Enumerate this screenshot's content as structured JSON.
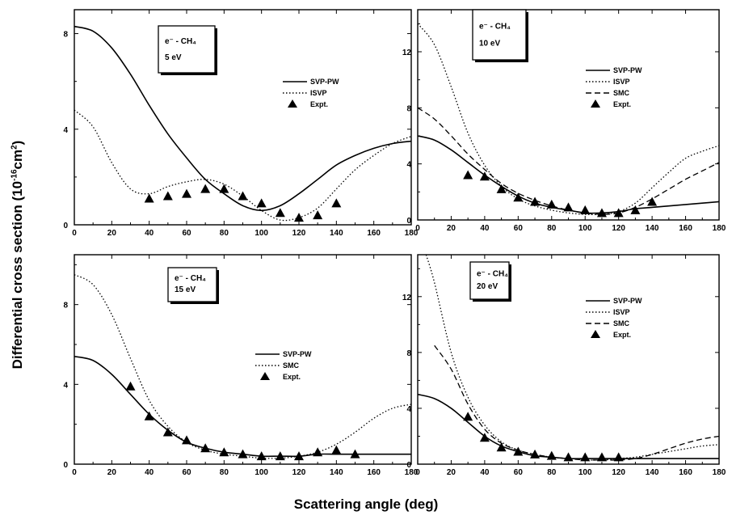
{
  "figure": {
    "xlabel": "Scattering angle (deg)",
    "ylabel_main": "Differential cross section (10",
    "ylabel_exp": "-16",
    "ylabel_unit": "cm",
    "ylabel_unit_exp": "2",
    "ylabel_close": ")"
  },
  "chart_data": [
    {
      "type": "line",
      "panel": "top-left",
      "box_line1": "e⁻ - CH₄",
      "box_line2": "5 eV",
      "xlim": [
        0,
        180
      ],
      "ylim": [
        0,
        9
      ],
      "xticks": [
        0,
        20,
        40,
        60,
        80,
        100,
        120,
        140,
        160,
        180
      ],
      "yticks": [
        0,
        4,
        8
      ],
      "legend_position": "right",
      "series": [
        {
          "name": "SVP-PW",
          "style": "solid",
          "x": [
            0,
            10,
            20,
            30,
            40,
            50,
            60,
            70,
            80,
            90,
            100,
            110,
            120,
            130,
            140,
            150,
            160,
            170,
            180
          ],
          "y": [
            8.3,
            8.1,
            7.4,
            6.3,
            5.0,
            3.8,
            2.8,
            1.9,
            1.3,
            0.8,
            0.6,
            0.8,
            1.3,
            1.9,
            2.5,
            2.9,
            3.2,
            3.4,
            3.5
          ]
        },
        {
          "name": "ISVP",
          "style": "dotted",
          "x": [
            0,
            10,
            20,
            30,
            40,
            50,
            60,
            70,
            80,
            90,
            100,
            110,
            120,
            130,
            140,
            150,
            160,
            170,
            180
          ],
          "y": [
            4.8,
            4.1,
            2.6,
            1.5,
            1.3,
            1.6,
            1.8,
            1.9,
            1.7,
            1.2,
            0.6,
            0.2,
            0.3,
            0.7,
            1.5,
            2.3,
            2.9,
            3.4,
            3.7
          ]
        },
        {
          "name": "Expt.",
          "style": "triangle",
          "x": [
            40,
            50,
            60,
            70,
            80,
            90,
            100,
            110,
            120,
            130,
            140
          ],
          "y": [
            1.1,
            1.2,
            1.3,
            1.5,
            1.5,
            1.2,
            0.9,
            0.5,
            0.3,
            0.4,
            0.9
          ]
        }
      ]
    },
    {
      "type": "line",
      "panel": "top-right",
      "box_line1": "e⁻ - CH₄",
      "box_line2": "10 eV",
      "xlim": [
        0,
        180
      ],
      "ylim": [
        0,
        15
      ],
      "xticks": [
        0,
        20,
        40,
        60,
        80,
        100,
        120,
        140,
        160,
        180
      ],
      "yticks": [
        0,
        4,
        8,
        12
      ],
      "legend_position": "right",
      "series": [
        {
          "name": "SVP-PW",
          "style": "solid",
          "x": [
            0,
            10,
            20,
            30,
            40,
            50,
            60,
            70,
            80,
            90,
            100,
            110,
            120,
            130,
            140,
            150,
            160,
            170,
            180
          ],
          "y": [
            6.0,
            5.7,
            5.0,
            4.1,
            3.2,
            2.4,
            1.7,
            1.2,
            0.9,
            0.7,
            0.5,
            0.5,
            0.6,
            0.8,
            0.9,
            1.0,
            1.1,
            1.2,
            1.3
          ]
        },
        {
          "name": "ISVP",
          "style": "dotted",
          "x": [
            0,
            10,
            20,
            30,
            40,
            50,
            60,
            70,
            80,
            90,
            100,
            110,
            120,
            130,
            140,
            150,
            160,
            170,
            180
          ],
          "y": [
            14.0,
            12.5,
            9.5,
            6.2,
            3.9,
            2.4,
            1.5,
            1.0,
            0.7,
            0.5,
            0.4,
            0.4,
            0.6,
            1.2,
            2.3,
            3.4,
            4.4,
            4.9,
            5.3
          ]
        },
        {
          "name": "SMC",
          "style": "dashed",
          "x": [
            0,
            10,
            20,
            30,
            40,
            50,
            60,
            70,
            80,
            90,
            100,
            110,
            120,
            130,
            140,
            150,
            160,
            170,
            180
          ],
          "y": [
            8.0,
            7.2,
            6.0,
            4.7,
            3.6,
            2.6,
            1.9,
            1.4,
            1.0,
            0.7,
            0.5,
            0.4,
            0.5,
            0.9,
            1.5,
            2.2,
            2.9,
            3.5,
            4.1
          ]
        },
        {
          "name": "Expt.",
          "style": "triangle",
          "x": [
            30,
            40,
            50,
            60,
            70,
            80,
            90,
            100,
            110,
            120,
            130,
            140
          ],
          "y": [
            3.2,
            3.1,
            2.2,
            1.6,
            1.3,
            1.1,
            0.9,
            0.7,
            0.5,
            0.5,
            0.7,
            1.3
          ]
        }
      ]
    },
    {
      "type": "line",
      "panel": "bottom-left",
      "box_line1": "e⁻ - CH₄",
      "box_line2": "15 eV",
      "xlim": [
        0,
        180
      ],
      "ylim": [
        0,
        10.5
      ],
      "xticks": [
        0,
        20,
        40,
        60,
        80,
        100,
        120,
        140,
        160,
        180
      ],
      "yticks": [
        0,
        4,
        8
      ],
      "legend_position": "right",
      "series": [
        {
          "name": "SVP-PW",
          "style": "solid",
          "x": [
            0,
            10,
            20,
            30,
            40,
            50,
            60,
            70,
            80,
            90,
            100,
            110,
            120,
            130,
            140,
            150,
            160,
            170,
            180
          ],
          "y": [
            5.4,
            5.2,
            4.5,
            3.5,
            2.5,
            1.7,
            1.1,
            0.8,
            0.6,
            0.5,
            0.4,
            0.4,
            0.4,
            0.5,
            0.5,
            0.5,
            0.5,
            0.5,
            0.5
          ]
        },
        {
          "name": "SMC",
          "style": "dotted",
          "x": [
            0,
            10,
            20,
            30,
            40,
            50,
            60,
            70,
            80,
            90,
            100,
            110,
            120,
            130,
            140,
            150,
            160,
            170,
            180
          ],
          "y": [
            9.5,
            9.0,
            7.5,
            5.3,
            3.2,
            1.9,
            1.1,
            0.7,
            0.5,
            0.4,
            0.3,
            0.3,
            0.4,
            0.6,
            1.0,
            1.6,
            2.3,
            2.8,
            3.0
          ]
        },
        {
          "name": "Expt.",
          "style": "triangle",
          "x": [
            30,
            40,
            50,
            60,
            70,
            80,
            90,
            100,
            110,
            120,
            130,
            140,
            150
          ],
          "y": [
            3.9,
            2.4,
            1.6,
            1.2,
            0.8,
            0.6,
            0.5,
            0.4,
            0.4,
            0.4,
            0.6,
            0.7,
            0.5
          ]
        }
      ]
    },
    {
      "type": "line",
      "panel": "bottom-right",
      "box_line1": "e⁻ - CH₄",
      "box_line2": "20 eV",
      "xlim": [
        0,
        180
      ],
      "ylim": [
        0,
        15
      ],
      "xticks": [
        0,
        20,
        40,
        60,
        80,
        100,
        120,
        140,
        160,
        180
      ],
      "yticks": [
        0,
        4,
        8,
        12
      ],
      "legend_position": "right",
      "series": [
        {
          "name": "SVP-PW",
          "style": "solid",
          "x": [
            0,
            10,
            20,
            30,
            40,
            50,
            60,
            70,
            80,
            90,
            100,
            110,
            120,
            130,
            140,
            150,
            160,
            170,
            180
          ],
          "y": [
            5.0,
            4.7,
            4.0,
            3.0,
            2.0,
            1.3,
            0.9,
            0.6,
            0.5,
            0.4,
            0.4,
            0.4,
            0.4,
            0.4,
            0.4,
            0.4,
            0.4,
            0.4,
            0.4
          ]
        },
        {
          "name": "ISVP",
          "style": "dotted",
          "x": [
            5,
            10,
            20,
            30,
            40,
            50,
            60,
            70,
            80,
            90,
            100,
            110,
            120,
            130,
            140,
            150,
            160,
            170,
            180
          ],
          "y": [
            15.0,
            13.0,
            8.0,
            4.8,
            2.8,
            1.6,
            1.0,
            0.7,
            0.5,
            0.4,
            0.3,
            0.3,
            0.4,
            0.5,
            0.7,
            0.9,
            1.1,
            1.3,
            1.4
          ]
        },
        {
          "name": "SMC",
          "style": "dashed",
          "x": [
            10,
            20,
            30,
            40,
            50,
            60,
            70,
            80,
            90,
            100,
            110,
            120,
            130,
            140,
            150,
            160,
            170,
            180
          ],
          "y": [
            8.5,
            6.8,
            4.3,
            2.5,
            1.5,
            1.0,
            0.7,
            0.5,
            0.4,
            0.3,
            0.3,
            0.3,
            0.4,
            0.7,
            1.1,
            1.5,
            1.8,
            2.0
          ]
        },
        {
          "name": "Expt.",
          "style": "triangle",
          "x": [
            30,
            40,
            50,
            60,
            70,
            80,
            90,
            100,
            110,
            120
          ],
          "y": [
            3.4,
            1.9,
            1.2,
            0.9,
            0.7,
            0.6,
            0.5,
            0.5,
            0.5,
            0.5
          ]
        }
      ]
    }
  ]
}
